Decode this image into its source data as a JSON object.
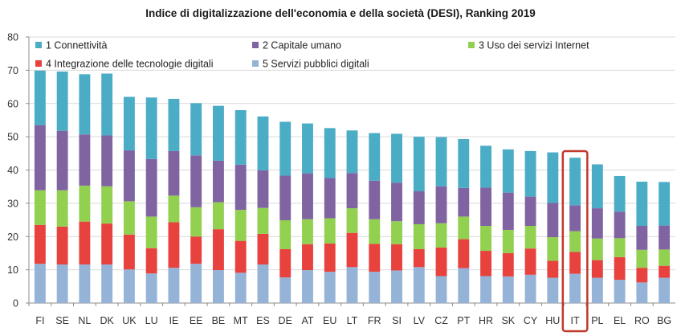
{
  "chart_data": {
    "type": "bar",
    "stacked": true,
    "title": "Indice di digitalizzazione dell'economia e della società (DESI), Ranking 2019",
    "xlabel": "",
    "ylabel": "",
    "ylim": [
      0,
      80
    ],
    "yticks": [
      0,
      10,
      20,
      30,
      40,
      50,
      60,
      70,
      80
    ],
    "grid": true,
    "legend_position": "top",
    "highlight_category": "IT",
    "highlight_color": "#c0392b",
    "categories": [
      "FI",
      "SE",
      "NL",
      "DK",
      "UK",
      "LU",
      "IE",
      "EE",
      "BE",
      "MT",
      "ES",
      "DE",
      "AT",
      "EU",
      "LT",
      "FR",
      "SI",
      "LV",
      "CZ",
      "PT",
      "HR",
      "SK",
      "CY",
      "HU",
      "IT",
      "PL",
      "EL",
      "RO",
      "BG"
    ],
    "series": [
      {
        "name": "5 Servizi pubblici digitali",
        "color": "#95b3d7",
        "values": [
          11.8,
          11.6,
          11.6,
          11.6,
          10.1,
          8.9,
          10.6,
          11.8,
          9.9,
          9.1,
          11.6,
          7.7,
          9.9,
          9.4,
          10.8,
          9.4,
          9.8,
          10.8,
          8.1,
          10.5,
          8.1,
          8.0,
          8.5,
          7.6,
          8.8,
          7.6,
          7.0,
          6.2,
          7.6
        ]
      },
      {
        "name": "4 Integrazione delle tecnologie digitali",
        "color": "#e8423f",
        "values": [
          11.7,
          11.4,
          12.9,
          12.3,
          10.5,
          7.6,
          13.7,
          8.2,
          12.3,
          9.6,
          9.2,
          8.5,
          7.8,
          8.5,
          10.3,
          8.4,
          7.9,
          5.4,
          8.6,
          8.7,
          7.6,
          7.0,
          7.9,
          5.1,
          6.6,
          5.3,
          6.8,
          4.4,
          3.6
        ]
      },
      {
        "name": "3 Uso dei servizi Internet",
        "color": "#92d050",
        "values": [
          10.4,
          10.9,
          10.8,
          11.2,
          10.0,
          9.5,
          8.0,
          8.8,
          8.1,
          9.3,
          7.8,
          8.7,
          7.5,
          7.6,
          7.4,
          7.4,
          6.9,
          7.5,
          7.3,
          6.8,
          7.5,
          7.0,
          6.8,
          7.1,
          6.2,
          6.5,
          5.7,
          5.4,
          4.9
        ]
      },
      {
        "name": "2 Capitale umano",
        "color": "#8064a2",
        "values": [
          19.6,
          17.9,
          15.4,
          15.3,
          15.3,
          17.3,
          13.4,
          15.6,
          12.5,
          13.6,
          11.3,
          13.4,
          13.8,
          12.1,
          10.6,
          11.6,
          11.6,
          9.9,
          11.1,
          8.6,
          11.5,
          11.2,
          8.8,
          10.3,
          7.8,
          9.1,
          8.0,
          7.2,
          7.2
        ]
      },
      {
        "name": "1 Connettività",
        "color": "#4bacc6",
        "values": [
          16.4,
          17.8,
          18.1,
          18.6,
          16.1,
          18.5,
          15.7,
          15.7,
          16.5,
          16.4,
          16.2,
          16.2,
          15.0,
          15.0,
          12.8,
          14.3,
          14.7,
          16.4,
          14.8,
          14.7,
          12.6,
          13.0,
          13.7,
          15.2,
          14.3,
          13.2,
          10.7,
          13.3,
          13.1
        ]
      }
    ],
    "legend": [
      {
        "label": "1 Connettività",
        "color": "#4bacc6"
      },
      {
        "label": "2 Capitale umano",
        "color": "#8064a2"
      },
      {
        "label": "3 Uso dei servizi Internet",
        "color": "#92d050"
      },
      {
        "label": "4 Integrazione delle tecnologie digitali",
        "color": "#e8423f"
      },
      {
        "label": "5 Servizi pubblici digitali",
        "color": "#95b3d7"
      }
    ]
  }
}
